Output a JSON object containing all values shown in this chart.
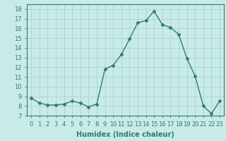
{
  "x": [
    0,
    1,
    2,
    3,
    4,
    5,
    6,
    7,
    8,
    9,
    10,
    11,
    12,
    13,
    14,
    15,
    16,
    17,
    18,
    19,
    20,
    21,
    22,
    23
  ],
  "y": [
    8.8,
    8.3,
    8.1,
    8.1,
    8.2,
    8.5,
    8.3,
    7.9,
    8.2,
    11.8,
    12.2,
    13.3,
    14.9,
    16.6,
    16.8,
    17.8,
    16.4,
    16.1,
    15.4,
    12.9,
    11.1,
    8.0,
    7.2,
    8.5
  ],
  "line_color": "#2e7d6e",
  "marker": "D",
  "markersize": 2.5,
  "linewidth": 1.0,
  "bg_color": "#c8ebe8",
  "grid_color": "#aad4d0",
  "xlabel": "Humidex (Indice chaleur)",
  "xlabel_fontsize": 7,
  "tick_fontsize": 6,
  "xlim": [
    -0.5,
    23.5
  ],
  "ylim": [
    7,
    18.5
  ],
  "yticks": [
    7,
    8,
    9,
    10,
    11,
    12,
    13,
    14,
    15,
    16,
    17,
    18
  ],
  "xticks": [
    0,
    1,
    2,
    3,
    4,
    5,
    6,
    7,
    8,
    9,
    10,
    11,
    12,
    13,
    14,
    15,
    16,
    17,
    18,
    19,
    20,
    21,
    22,
    23
  ]
}
